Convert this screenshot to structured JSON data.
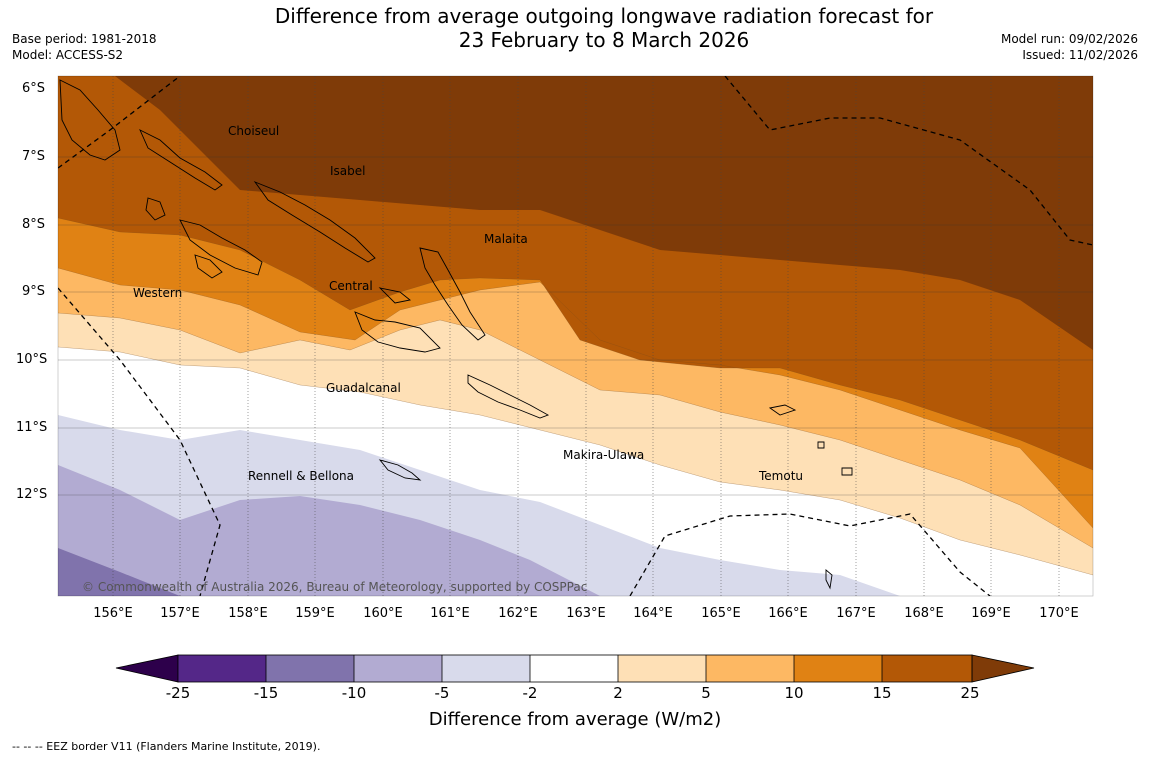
{
  "header": {
    "title_line1": "Difference from average outgoing longwave radiation forecast for",
    "title_line2": "23 February to 8 March 2026",
    "base_period": "Base period: 1981-2018",
    "model": "Model: ACCESS-S2",
    "model_run": "Model run: 09/02/2026",
    "issued": "Issued: 11/02/2026"
  },
  "map": {
    "lat_labels": [
      "6°S",
      "7°S",
      "8°S",
      "9°S",
      "10°S",
      "11°S",
      "12°S"
    ],
    "lon_labels": [
      "156°E",
      "157°E",
      "158°E",
      "159°E",
      "160°E",
      "161°E",
      "162°E",
      "163°E",
      "164°E",
      "165°E",
      "166°E",
      "167°E",
      "168°E",
      "169°E",
      "170°E"
    ],
    "regions": {
      "choiseul": "Choiseul",
      "isabel": "Isabel",
      "malaita": "Malaita",
      "western": "Western",
      "central": "Central",
      "guadalcanal": "Guadalcanal",
      "makira": "Makira-Ulawa",
      "rennell": "Rennell & Bellona",
      "temotu": "Temotu"
    },
    "copyright": "© Commonwealth of Australia 2026, Bureau of Meteorology, supported by COSPPac",
    "colors": {
      "c25plus": "#7f3b08",
      "c15_25": "#b35806",
      "c10_15": "#e08214",
      "c5_10": "#fdb863",
      "c2_5": "#fee0b6",
      "cneutral": "#ffffff",
      "cm5_m2": "#d8daeb",
      "cm10_m5": "#b2abd2",
      "cm15_m10": "#8073ac",
      "cm25_m15": "#542788",
      "cbelow": "#2d004b"
    }
  },
  "colorbar": {
    "ticks": [
      "-25",
      "-15",
      "-10",
      "-5",
      "-2",
      "2",
      "5",
      "10",
      "15",
      "25"
    ],
    "title": "Difference from average (W/m2)"
  },
  "footnote": "--  --  -- EEZ border V11 (Flanders Marine Institute, 2019)."
}
